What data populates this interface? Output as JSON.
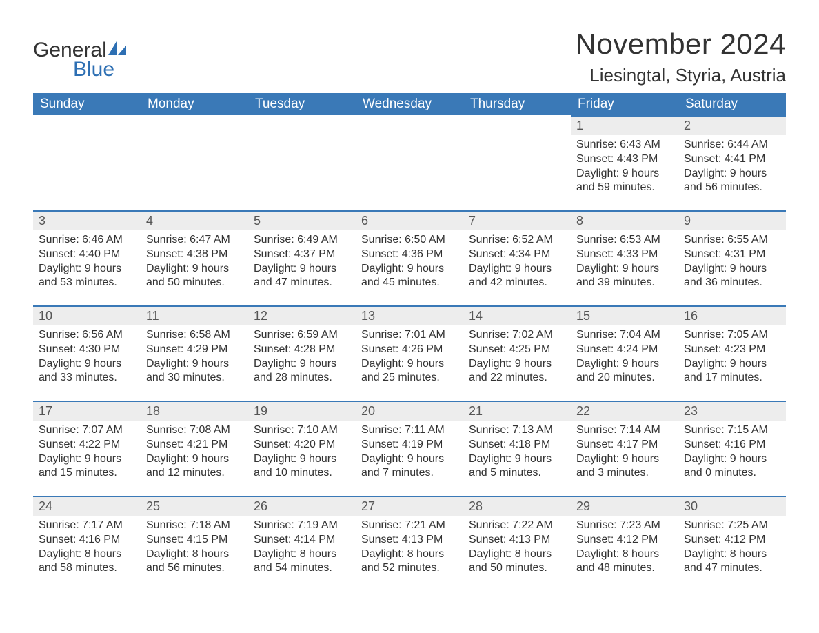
{
  "brand": {
    "word1": "General",
    "word2": "Blue",
    "word1_color": "#333333",
    "word2_color": "#2d6fb3",
    "sail_color": "#2d6fb3"
  },
  "title": "November 2024",
  "location": "Liesingtal, Styria, Austria",
  "colors": {
    "header_bg": "#3a79b7",
    "header_text": "#ffffff",
    "daynum_bg": "#ededed",
    "border_top": "#3a79b7",
    "body_text": "#333333",
    "background": "#ffffff"
  },
  "font": {
    "family": "Arial",
    "title_size_pt": 32,
    "location_size_pt": 20,
    "header_size_pt": 14,
    "body_size_pt": 12
  },
  "columns": [
    "Sunday",
    "Monday",
    "Tuesday",
    "Wednesday",
    "Thursday",
    "Friday",
    "Saturday"
  ],
  "weeks": [
    [
      null,
      null,
      null,
      null,
      null,
      {
        "n": "1",
        "sunrise": "6:43 AM",
        "sunset": "4:43 PM",
        "dl1": "9 hours",
        "dl2": "and 59 minutes."
      },
      {
        "n": "2",
        "sunrise": "6:44 AM",
        "sunset": "4:41 PM",
        "dl1": "9 hours",
        "dl2": "and 56 minutes."
      }
    ],
    [
      {
        "n": "3",
        "sunrise": "6:46 AM",
        "sunset": "4:40 PM",
        "dl1": "9 hours",
        "dl2": "and 53 minutes."
      },
      {
        "n": "4",
        "sunrise": "6:47 AM",
        "sunset": "4:38 PM",
        "dl1": "9 hours",
        "dl2": "and 50 minutes."
      },
      {
        "n": "5",
        "sunrise": "6:49 AM",
        "sunset": "4:37 PM",
        "dl1": "9 hours",
        "dl2": "and 47 minutes."
      },
      {
        "n": "6",
        "sunrise": "6:50 AM",
        "sunset": "4:36 PM",
        "dl1": "9 hours",
        "dl2": "and 45 minutes."
      },
      {
        "n": "7",
        "sunrise": "6:52 AM",
        "sunset": "4:34 PM",
        "dl1": "9 hours",
        "dl2": "and 42 minutes."
      },
      {
        "n": "8",
        "sunrise": "6:53 AM",
        "sunset": "4:33 PM",
        "dl1": "9 hours",
        "dl2": "and 39 minutes."
      },
      {
        "n": "9",
        "sunrise": "6:55 AM",
        "sunset": "4:31 PM",
        "dl1": "9 hours",
        "dl2": "and 36 minutes."
      }
    ],
    [
      {
        "n": "10",
        "sunrise": "6:56 AM",
        "sunset": "4:30 PM",
        "dl1": "9 hours",
        "dl2": "and 33 minutes."
      },
      {
        "n": "11",
        "sunrise": "6:58 AM",
        "sunset": "4:29 PM",
        "dl1": "9 hours",
        "dl2": "and 30 minutes."
      },
      {
        "n": "12",
        "sunrise": "6:59 AM",
        "sunset": "4:28 PM",
        "dl1": "9 hours",
        "dl2": "and 28 minutes."
      },
      {
        "n": "13",
        "sunrise": "7:01 AM",
        "sunset": "4:26 PM",
        "dl1": "9 hours",
        "dl2": "and 25 minutes."
      },
      {
        "n": "14",
        "sunrise": "7:02 AM",
        "sunset": "4:25 PM",
        "dl1": "9 hours",
        "dl2": "and 22 minutes."
      },
      {
        "n": "15",
        "sunrise": "7:04 AM",
        "sunset": "4:24 PM",
        "dl1": "9 hours",
        "dl2": "and 20 minutes."
      },
      {
        "n": "16",
        "sunrise": "7:05 AM",
        "sunset": "4:23 PM",
        "dl1": "9 hours",
        "dl2": "and 17 minutes."
      }
    ],
    [
      {
        "n": "17",
        "sunrise": "7:07 AM",
        "sunset": "4:22 PM",
        "dl1": "9 hours",
        "dl2": "and 15 minutes."
      },
      {
        "n": "18",
        "sunrise": "7:08 AM",
        "sunset": "4:21 PM",
        "dl1": "9 hours",
        "dl2": "and 12 minutes."
      },
      {
        "n": "19",
        "sunrise": "7:10 AM",
        "sunset": "4:20 PM",
        "dl1": "9 hours",
        "dl2": "and 10 minutes."
      },
      {
        "n": "20",
        "sunrise": "7:11 AM",
        "sunset": "4:19 PM",
        "dl1": "9 hours",
        "dl2": "and 7 minutes."
      },
      {
        "n": "21",
        "sunrise": "7:13 AM",
        "sunset": "4:18 PM",
        "dl1": "9 hours",
        "dl2": "and 5 minutes."
      },
      {
        "n": "22",
        "sunrise": "7:14 AM",
        "sunset": "4:17 PM",
        "dl1": "9 hours",
        "dl2": "and 3 minutes."
      },
      {
        "n": "23",
        "sunrise": "7:15 AM",
        "sunset": "4:16 PM",
        "dl1": "9 hours",
        "dl2": "and 0 minutes."
      }
    ],
    [
      {
        "n": "24",
        "sunrise": "7:17 AM",
        "sunset": "4:16 PM",
        "dl1": "8 hours",
        "dl2": "and 58 minutes."
      },
      {
        "n": "25",
        "sunrise": "7:18 AM",
        "sunset": "4:15 PM",
        "dl1": "8 hours",
        "dl2": "and 56 minutes."
      },
      {
        "n": "26",
        "sunrise": "7:19 AM",
        "sunset": "4:14 PM",
        "dl1": "8 hours",
        "dl2": "and 54 minutes."
      },
      {
        "n": "27",
        "sunrise": "7:21 AM",
        "sunset": "4:13 PM",
        "dl1": "8 hours",
        "dl2": "and 52 minutes."
      },
      {
        "n": "28",
        "sunrise": "7:22 AM",
        "sunset": "4:13 PM",
        "dl1": "8 hours",
        "dl2": "and 50 minutes."
      },
      {
        "n": "29",
        "sunrise": "7:23 AM",
        "sunset": "4:12 PM",
        "dl1": "8 hours",
        "dl2": "and 48 minutes."
      },
      {
        "n": "30",
        "sunrise": "7:25 AM",
        "sunset": "4:12 PM",
        "dl1": "8 hours",
        "dl2": "and 47 minutes."
      }
    ]
  ],
  "labels": {
    "sunrise": "Sunrise:",
    "sunset": "Sunset:",
    "daylight": "Daylight:"
  }
}
